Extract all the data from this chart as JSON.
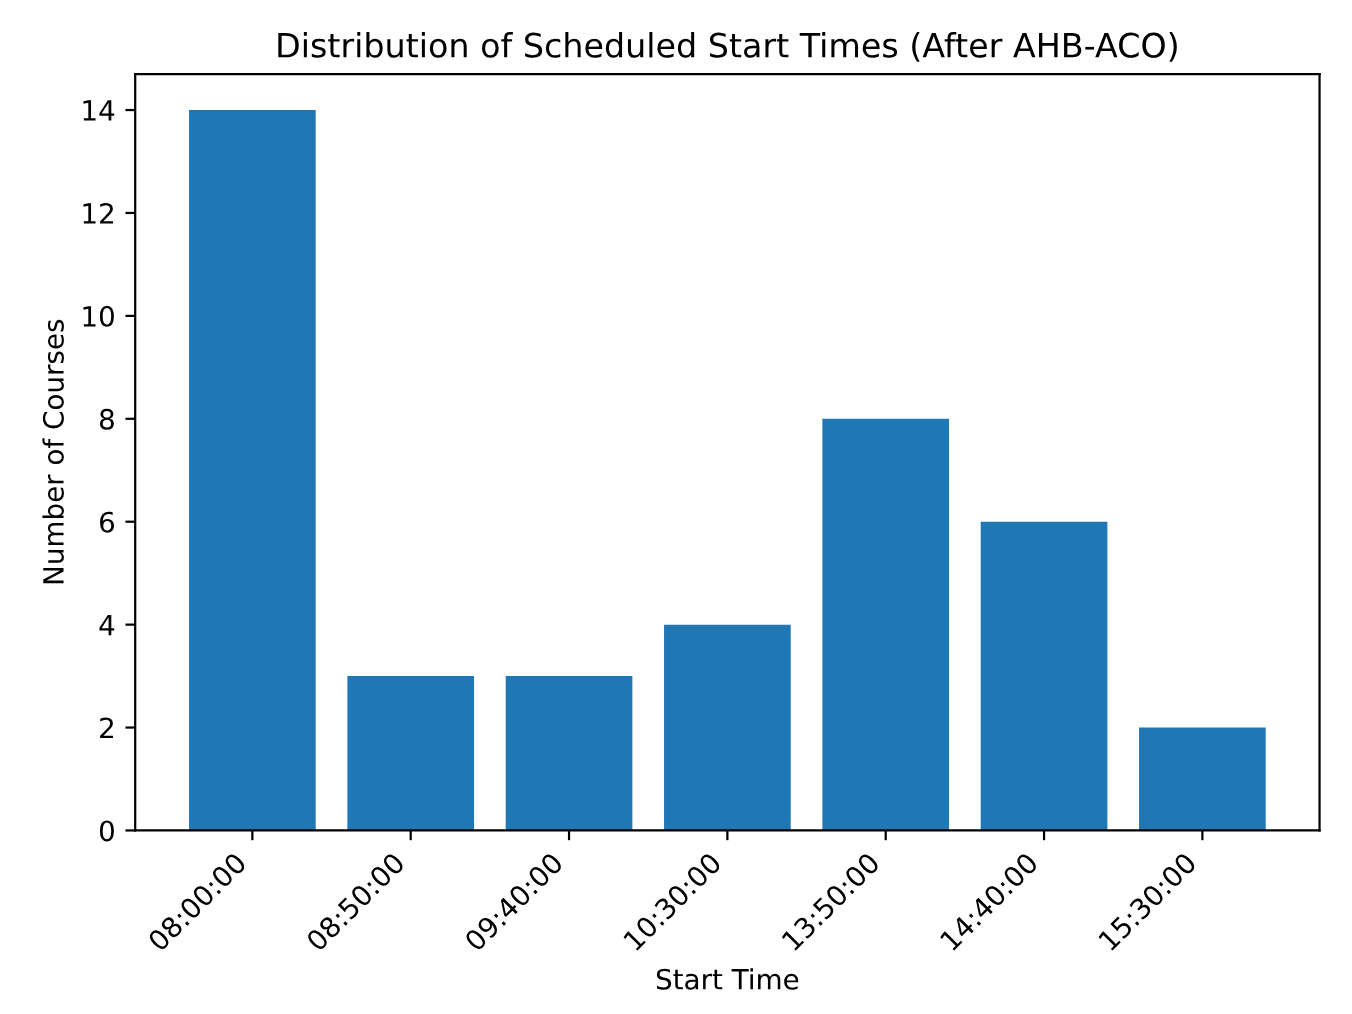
{
  "chart_data": {
    "type": "bar",
    "title": "Distribution of Scheduled Start Times (After AHB-ACO)",
    "xlabel": "Start Time",
    "ylabel": "Number of Courses",
    "categories": [
      "08:00:00",
      "08:50:00",
      "09:40:00",
      "10:30:00",
      "13:50:00",
      "14:40:00",
      "15:30:00"
    ],
    "values": [
      14,
      3,
      3,
      4,
      8,
      6,
      2
    ],
    "color": "#1f77b4",
    "ylim": [
      0,
      14.7
    ],
    "yticks": [
      0,
      2,
      4,
      6,
      8,
      10,
      12,
      14
    ],
    "grid": false
  }
}
